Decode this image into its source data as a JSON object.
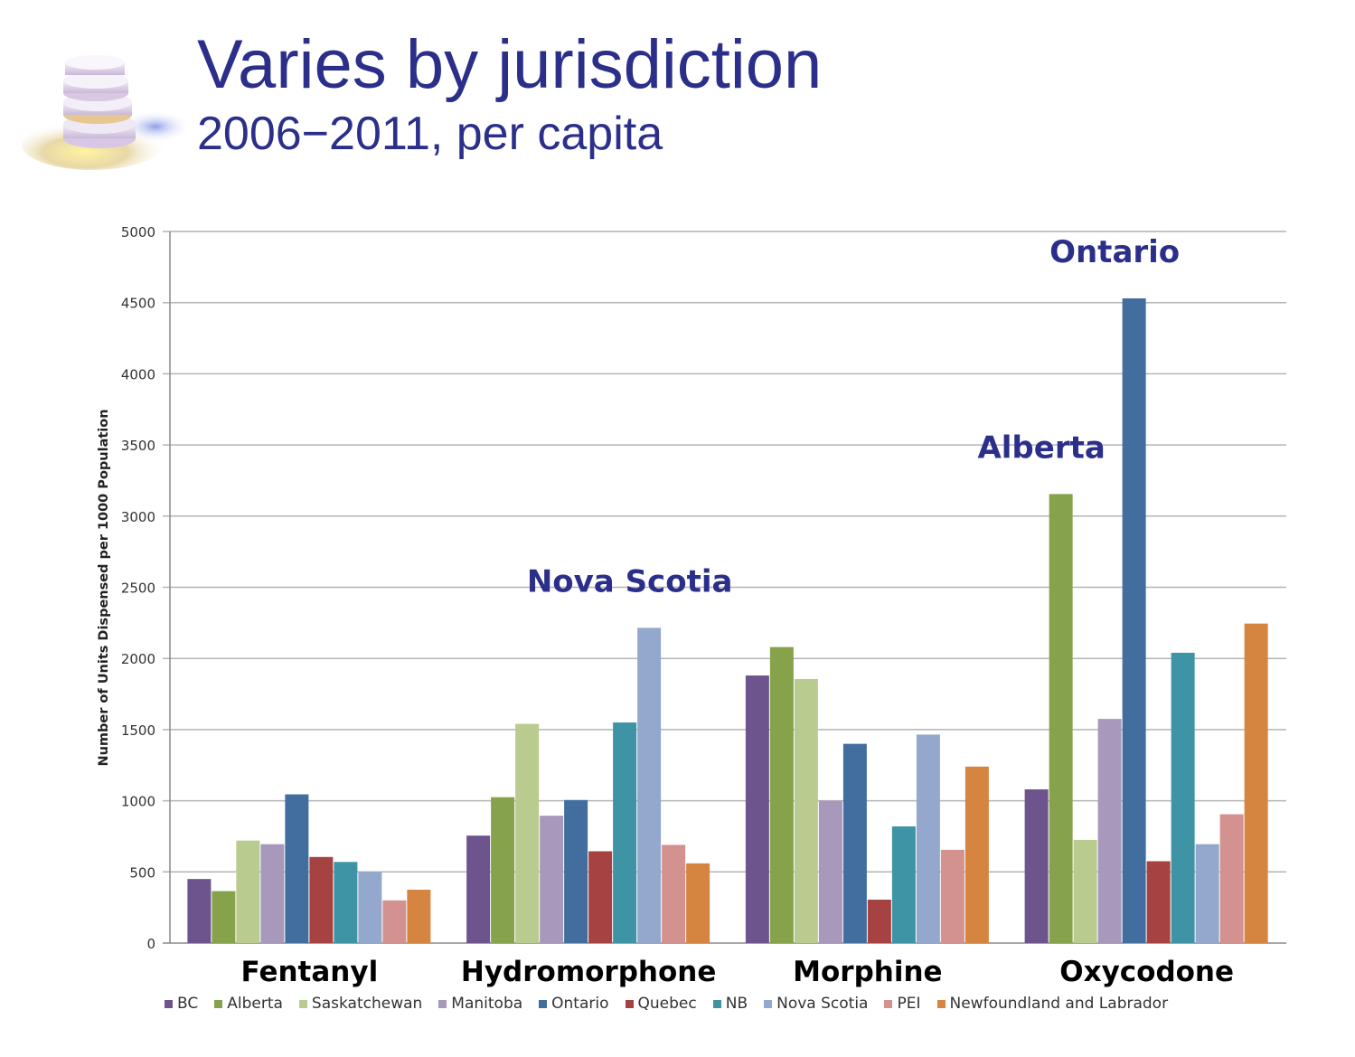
{
  "header": {
    "title": "Varies by jurisdiction",
    "subtitle": "2006−2011, per capita"
  },
  "chart_data": {
    "type": "bar",
    "ylabel": "Number of Units Dispensed per 1000 Population",
    "ylim": [
      0,
      5000
    ],
    "yticks": [
      0,
      500,
      1000,
      1500,
      2000,
      2500,
      3000,
      3500,
      4000,
      4500,
      5000
    ],
    "grid": true,
    "legend_position": "bottom",
    "categories": [
      "Fentanyl",
      "Hydromorphone",
      "Morphine",
      "Oxycodone"
    ],
    "series": [
      {
        "name": "BC",
        "color": "#6e548d",
        "values": [
          450,
          755,
          1880,
          1080
        ]
      },
      {
        "name": "Alberta",
        "color": "#86a24a",
        "values": [
          365,
          1025,
          2080,
          3155
        ]
      },
      {
        "name": "Saskatchewan",
        "color": "#b9cb8f",
        "values": [
          720,
          1540,
          1855,
          725
        ]
      },
      {
        "name": "Manitoba",
        "color": "#a898bc",
        "values": [
          695,
          895,
          1000,
          1575
        ]
      },
      {
        "name": "Ontario",
        "color": "#426d9f",
        "values": [
          1045,
          1005,
          1400,
          4530
        ]
      },
      {
        "name": "Quebec",
        "color": "#a64241",
        "values": [
          605,
          645,
          305,
          575
        ]
      },
      {
        "name": "NB",
        "color": "#3e94a5",
        "values": [
          570,
          1550,
          820,
          2040
        ]
      },
      {
        "name": "Nova Scotia",
        "color": "#93a8cc",
        "values": [
          500,
          2215,
          1465,
          695
        ]
      },
      {
        "name": "PEI",
        "color": "#d39190",
        "values": [
          300,
          690,
          655,
          905
        ]
      },
      {
        "name": "Newfoundland and Labrador",
        "color": "#d5853f",
        "values": [
          375,
          560,
          1240,
          2245
        ]
      }
    ],
    "annotations": [
      {
        "text": "Nova Scotia",
        "category": "Hydromorphone",
        "series": "Nova Scotia"
      },
      {
        "text": "Alberta",
        "category": "Oxycodone",
        "series": "Alberta"
      },
      {
        "text": "Ontario",
        "category": "Oxycodone",
        "series": "Ontario"
      }
    ],
    "annotation_color": "#2b2f8a"
  }
}
